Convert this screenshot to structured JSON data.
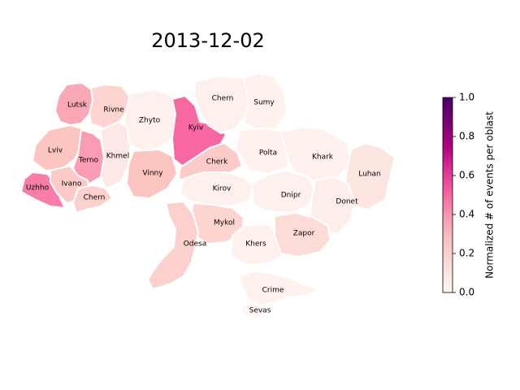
{
  "title": "2013-12-02",
  "colorbar": {
    "label": "Normalized # of events per oblast",
    "range": [
      0.0,
      1.0
    ],
    "ticks": [
      "0.0",
      "0.2",
      "0.4",
      "0.6",
      "0.8",
      "1.0"
    ],
    "colors": [
      "#fff7f3",
      "#fde0dd",
      "#fcc5c0",
      "#fa9fb5",
      "#f768a1",
      "#dd3497",
      "#ae017e",
      "#7a0177",
      "#49006a"
    ]
  },
  "chart_data": {
    "type": "choropleth",
    "title": "2013-12-02",
    "value_range": [
      0,
      1
    ],
    "regions": [
      {
        "name": "Lutsk",
        "value": 0.35
      },
      {
        "name": "Rivne",
        "value": 0.18
      },
      {
        "name": "Zhyto",
        "value": 0.04
      },
      {
        "name": "Kyiv",
        "value": 0.5
      },
      {
        "name": "Chern",
        "value": 0.04
      },
      {
        "name": "Sumy",
        "value": 0.03
      },
      {
        "name": "Lviv",
        "value": 0.25
      },
      {
        "name": "Terno",
        "value": 0.38
      },
      {
        "name": "Khmel",
        "value": 0.08
      },
      {
        "name": "Vinny",
        "value": 0.25
      },
      {
        "name": "Cherk",
        "value": 0.22
      },
      {
        "name": "Polta",
        "value": 0.03
      },
      {
        "name": "Khark",
        "value": 0.03
      },
      {
        "name": "Luhan",
        "value": 0.1
      },
      {
        "name": "Uzhho",
        "value": 0.45
      },
      {
        "name": "Ivano",
        "value": 0.22
      },
      {
        "name": "Chern",
        "value": 0.2
      },
      {
        "name": "Kirov",
        "value": 0.04
      },
      {
        "name": "Dnipr",
        "value": 0.04
      },
      {
        "name": "Donet",
        "value": 0.05
      },
      {
        "name": "Mykol",
        "value": 0.18
      },
      {
        "name": "Odesa",
        "value": 0.2
      },
      {
        "name": "Khers",
        "value": 0.04
      },
      {
        "name": "Zapor",
        "value": 0.15
      },
      {
        "name": "Crime",
        "value": 0.03
      },
      {
        "name": "Sevas",
        "value": 0.0
      }
    ]
  }
}
